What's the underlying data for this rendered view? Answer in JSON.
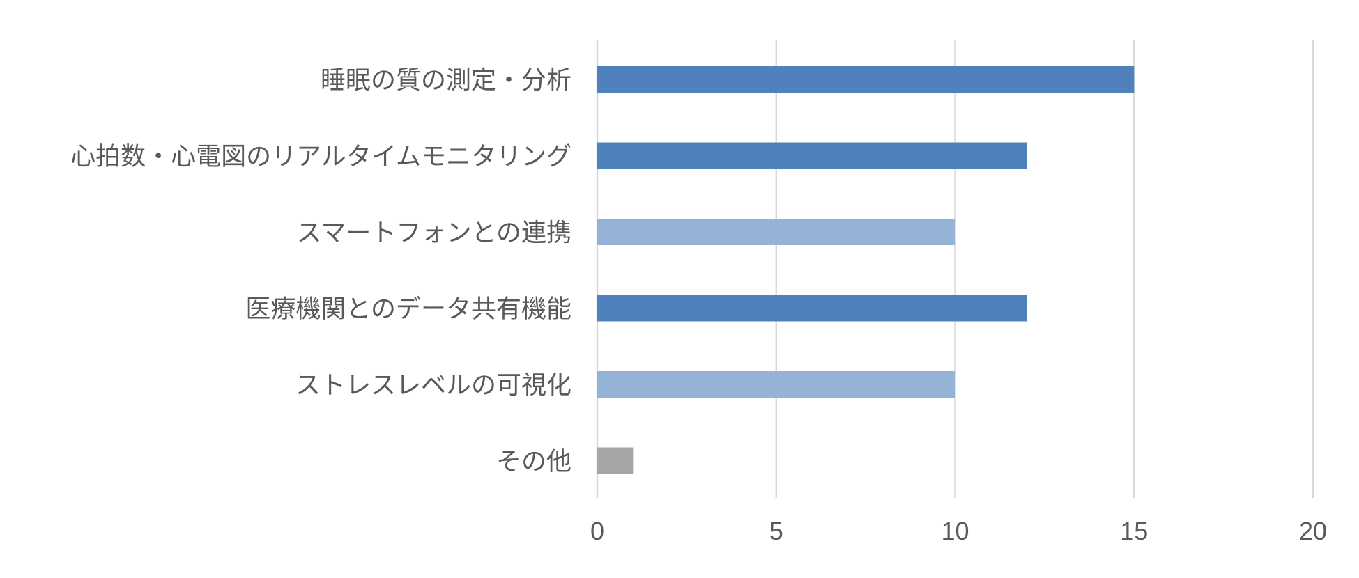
{
  "chart_data": {
    "type": "bar",
    "orientation": "horizontal",
    "title": "",
    "xlabel": "",
    "ylabel": "",
    "categories": [
      "睡眠の質の測定・分析",
      "心拍数・心電図のリアルタイムモニタリング",
      "スマートフォンとの連携",
      "医療機関とのデータ共有機能",
      "ストレスレベルの可視化",
      "その他"
    ],
    "values": [
      15,
      12,
      10,
      12,
      10,
      1
    ],
    "bar_colors": [
      "#4f81bd",
      "#4f81bd",
      "#95b3d7",
      "#4f81bd",
      "#95b3d7",
      "#a6a6a6"
    ],
    "xlim": [
      0,
      20
    ],
    "x_ticks": [
      "0",
      "5",
      "10",
      "15",
      "20"
    ],
    "grid": "vertical",
    "legend": "none"
  }
}
